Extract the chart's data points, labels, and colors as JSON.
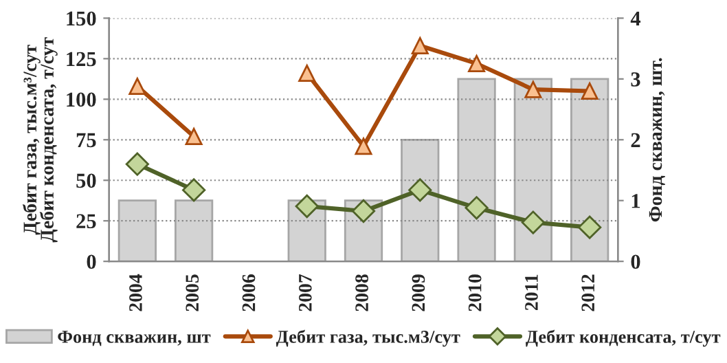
{
  "chart_data": {
    "type": "bar",
    "categories": [
      "2004",
      "2005",
      "2006",
      "2007",
      "2008",
      "2009",
      "2010",
      "2011",
      "2012"
    ],
    "ylabel": "Дебит газа, тыс.м³/сут\nДебит конденсата, т/сут",
    "y2label": "Фонд скважин, шт.",
    "ylim": [
      0,
      150
    ],
    "yticks": [
      0,
      25,
      50,
      75,
      100,
      125,
      150
    ],
    "y2lim": [
      0,
      4
    ],
    "y2ticks": [
      0,
      1,
      2,
      3,
      4
    ],
    "grid": "y",
    "legend": "bottom",
    "series": [
      {
        "name": "Фонд скважин, шт",
        "axis": "y2",
        "color": "#d3d3d3",
        "values": [
          1,
          1,
          null,
          1,
          1,
          2,
          3,
          3,
          3
        ]
      },
      {
        "name": "Дебит газа, тыс.м3/сут",
        "type": "line",
        "color": "#a94a0c",
        "marker": "triangle",
        "values": [
          108,
          77,
          null,
          116,
          71,
          133,
          122,
          106,
          105
        ]
      },
      {
        "name": "Дебит конденсата, т/сут",
        "type": "line",
        "color": "#4f6228",
        "marker": "diamond",
        "values": [
          60,
          44,
          null,
          34,
          31,
          44,
          33,
          24,
          21
        ]
      }
    ]
  }
}
